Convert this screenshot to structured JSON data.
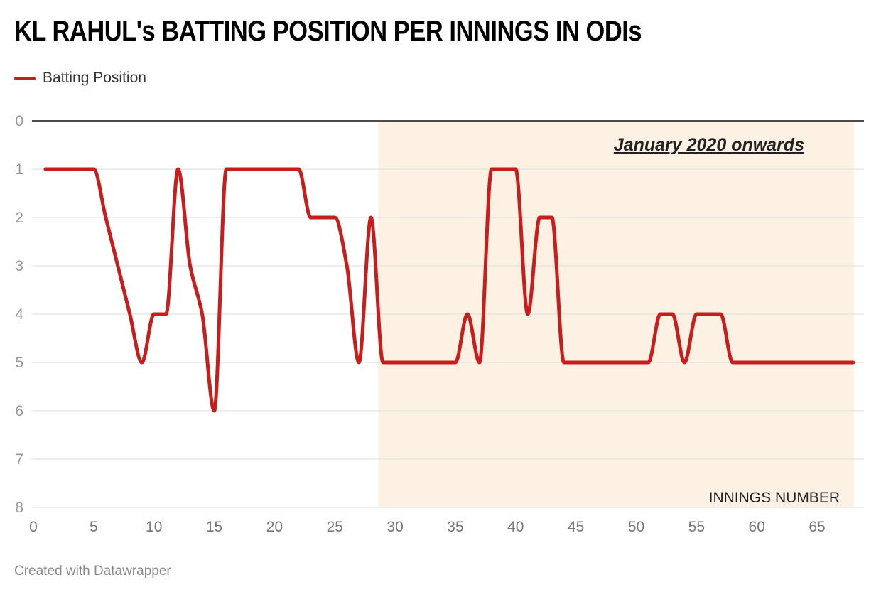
{
  "title": "KL RAHUL's BATTING POSITION PER INNINGS IN ODIs",
  "footer": "Created with Datawrapper",
  "colors": {
    "line": "#c71e1d",
    "highlight": "#fdf1e3",
    "grid": "#e3e3e3",
    "baseline": "#111111"
  },
  "chart_data": {
    "type": "line",
    "title": "KL RAHUL's BATTING POSITION PER INNINGS IN ODIs",
    "xlabel": "INNINGS NUMBER",
    "ylabel": "",
    "xlim": [
      0,
      68
    ],
    "ylim": [
      0,
      8
    ],
    "y_inverted": true,
    "grid": true,
    "legend_placement": "top-left",
    "x_ticks": [
      "0",
      "5",
      "10",
      "15",
      "20",
      "25",
      "30",
      "35",
      "40",
      "45",
      "50",
      "55",
      "60",
      "65"
    ],
    "y_ticks": [
      "0",
      "1",
      "2",
      "3",
      "4",
      "5",
      "6",
      "7",
      "8"
    ],
    "highlight_range": {
      "x_start": 28.6,
      "x_end": 68,
      "label": "January 2020 onwards"
    },
    "series": [
      {
        "name": "Batting Position",
        "x": [
          1,
          2,
          3,
          4,
          5,
          6,
          7,
          8,
          9,
          10,
          11,
          12,
          13,
          14,
          15,
          16,
          17,
          18,
          19,
          20,
          21,
          22,
          23,
          24,
          25,
          26,
          27,
          28,
          29,
          30,
          31,
          32,
          33,
          34,
          35,
          36,
          37,
          38,
          39,
          40,
          41,
          42,
          43,
          44,
          45,
          46,
          47,
          48,
          49,
          50,
          51,
          52,
          53,
          54,
          55,
          56,
          57,
          58,
          59,
          60,
          61,
          62,
          63,
          64,
          65,
          66,
          67,
          68
        ],
        "values": [
          1,
          1,
          1,
          1,
          1,
          2,
          3,
          4,
          5,
          4,
          4,
          1,
          3,
          4,
          6,
          1,
          1,
          1,
          1,
          1,
          1,
          1,
          2,
          2,
          2,
          3,
          5,
          2,
          5,
          5,
          5,
          5,
          5,
          5,
          5,
          4,
          5,
          1,
          1,
          1,
          4,
          2,
          2,
          5,
          5,
          5,
          5,
          5,
          5,
          5,
          5,
          4,
          4,
          5,
          4,
          4,
          4,
          5,
          5,
          5,
          5,
          5,
          5,
          5,
          5,
          5,
          5,
          5
        ]
      }
    ]
  }
}
